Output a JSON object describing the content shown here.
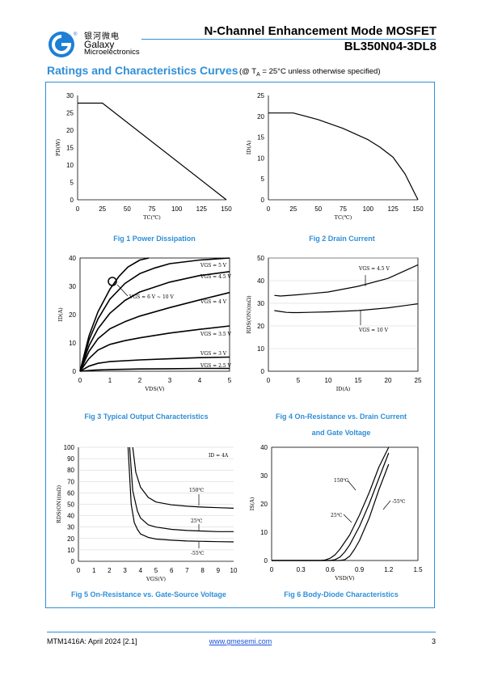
{
  "header": {
    "brand_cn": "银河微电",
    "brand_en": "Galaxy",
    "brand_sub": "Microelectronics",
    "title": "N-Channel Enhancement Mode MOSFET",
    "part_number": "BL350N04-3DL8"
  },
  "section": {
    "title": "Ratings and Characteristics Curves",
    "condition_prefix": "(@ T",
    "condition_sub": "A",
    "condition_suffix": " = 25°C unless otherwise specified)"
  },
  "colors": {
    "accent": "#2f8fd8",
    "logo": "#1d7fd6",
    "curve": "#000000"
  },
  "chart_data": [
    {
      "id": "fig1",
      "type": "line",
      "caption": "Fig 1    Power Dissipation",
      "xlabel": "TC(℃)",
      "ylabel": "PD(W)",
      "xticks": [
        0,
        25,
        50,
        75,
        100,
        125,
        150
      ],
      "yticks": [
        0,
        5,
        10,
        15,
        20,
        25,
        30
      ],
      "xlim": [
        0,
        150
      ],
      "ylim": [
        0,
        30
      ],
      "series": [
        {
          "x": [
            0,
            25,
            150
          ],
          "y": [
            27.8,
            27.8,
            0
          ]
        }
      ]
    },
    {
      "id": "fig2",
      "type": "line",
      "caption": "Fig 2    Drain Current",
      "xlabel": "TC(℃)",
      "ylabel": "ID(A)",
      "xticks": [
        0,
        25,
        50,
        75,
        100,
        125,
        150
      ],
      "yticks": [
        0,
        5,
        10,
        15,
        20,
        25
      ],
      "xlim": [
        0,
        150
      ],
      "ylim": [
        0,
        25
      ],
      "series": [
        {
          "x": [
            0,
            25,
            50,
            75,
            100,
            112,
            125,
            137,
            150
          ],
          "y": [
            20.8,
            20.8,
            19.2,
            17.1,
            14.4,
            12.6,
            10.2,
            6.2,
            0
          ]
        }
      ]
    },
    {
      "id": "fig3",
      "type": "line",
      "caption": "Fig 3    Typical Output Characteristics",
      "xlabel": "VDS(V)",
      "ylabel": "ID(A)",
      "xticks": [
        0,
        1,
        2,
        3,
        4,
        5
      ],
      "yticks": [
        0,
        10,
        20,
        30,
        40
      ],
      "xlim": [
        0,
        5
      ],
      "ylim": [
        0,
        40
      ],
      "series": [
        {
          "name": "VGS = 2.5 V",
          "x": [
            0,
            0.5,
            1,
            2,
            3,
            4,
            5
          ],
          "y": [
            0,
            0.4,
            0.6,
            0.8,
            0.9,
            1.0,
            1.0
          ]
        },
        {
          "name": "VGS = 3 V",
          "x": [
            0,
            0.3,
            0.6,
            1,
            2,
            3,
            4,
            5
          ],
          "y": [
            0,
            1.8,
            2.8,
            3.4,
            4.0,
            4.4,
            4.8,
            5.0
          ]
        },
        {
          "name": "VGS = 3.5 V",
          "x": [
            0,
            0.3,
            0.6,
            1,
            1.5,
            2,
            3,
            4,
            5
          ],
          "y": [
            0,
            4.5,
            7.5,
            9.5,
            10.8,
            11.8,
            13.5,
            14.8,
            16.0
          ]
        },
        {
          "name": "VGS = 4 V",
          "x": [
            0,
            0.3,
            0.6,
            1,
            1.5,
            2,
            3,
            4,
            5
          ],
          "y": [
            0,
            7.0,
            11.5,
            15.0,
            17.5,
            19.5,
            22.5,
            25.2,
            27.8
          ]
        },
        {
          "name": "VGS = 4.5 V",
          "x": [
            0,
            0.3,
            0.6,
            1,
            1.5,
            2,
            3,
            4,
            5
          ],
          "y": [
            0,
            9.0,
            15.0,
            20.5,
            25.0,
            28.0,
            31.5,
            33.8,
            35.2
          ]
        },
        {
          "name": "VGS = 5 V",
          "x": [
            0,
            0.3,
            0.6,
            1,
            1.5,
            2,
            2.5,
            3,
            4,
            5
          ],
          "y": [
            0,
            11.0,
            18.5,
            25.5,
            31.0,
            34.5,
            36.5,
            38.0,
            39.3,
            40.0
          ]
        },
        {
          "name": "VGS = 6 V ~ 10 V",
          "x": [
            0,
            0.3,
            0.6,
            1,
            1.3,
            1.6,
            2,
            2.3
          ],
          "y": [
            0,
            12.5,
            21.0,
            29.0,
            33.5,
            36.8,
            39.3,
            40.0
          ]
        }
      ],
      "annotations": [
        "VGS = 5 V",
        "VGS = 4.5 V",
        "VGS = 6 V ~ 10 V",
        "VGS = 4 V",
        "VGS = 3.5 V",
        "VGS = 3 V",
        "VGS = 2.5 V"
      ]
    },
    {
      "id": "fig4",
      "type": "line",
      "caption_line1": "Fig 4    On-Resistance vs. Drain Current",
      "caption_line2": "and Gate Voltage",
      "xlabel": "ID(A)",
      "ylabel": "RDS(ON)(mΩ)",
      "xticks": [
        0,
        5,
        10,
        15,
        20,
        25
      ],
      "yticks": [
        0,
        10,
        20,
        30,
        40,
        50
      ],
      "xlim": [
        0,
        25
      ],
      "ylim": [
        0,
        50
      ],
      "series": [
        {
          "name": "VGS = 4.5 V",
          "x": [
            1,
            2,
            3,
            5,
            10,
            15,
            20,
            25
          ],
          "y": [
            33.5,
            33.2,
            33.4,
            33.8,
            35.0,
            37.5,
            41.0,
            47.0
          ]
        },
        {
          "name": "VGS = 10 V",
          "x": [
            1,
            2,
            3,
            4,
            5,
            10,
            15,
            20,
            25
          ],
          "y": [
            26.8,
            26.4,
            26.0,
            25.9,
            25.9,
            26.2,
            26.8,
            28.0,
            29.8
          ]
        }
      ],
      "annotations": [
        "VGS = 4.5 V",
        "VGS = 10 V"
      ]
    },
    {
      "id": "fig5",
      "type": "line",
      "caption": "Fig 5    On-Resistance vs. Gate-Source Voltage",
      "xlabel": "VGS(V)",
      "ylabel": "RDS(ON)(mΩ)",
      "xticks": [
        0,
        1,
        2,
        3,
        4,
        5,
        6,
        7,
        8,
        9,
        10
      ],
      "yticks": [
        0,
        10,
        20,
        30,
        40,
        50,
        60,
        70,
        80,
        90,
        100
      ],
      "xlim": [
        0,
        10
      ],
      "ylim": [
        0,
        100
      ],
      "series": [
        {
          "name": "150℃",
          "x": [
            3.5,
            3.7,
            4,
            4.5,
            5,
            6,
            7,
            8,
            9,
            10
          ],
          "y": [
            100,
            78,
            65,
            56,
            52,
            49.5,
            48.3,
            47.5,
            47,
            46.5
          ]
        },
        {
          "name": "25℃",
          "x": [
            3.3,
            3.5,
            3.8,
            4,
            4.5,
            5,
            6,
            7,
            8,
            9,
            10
          ],
          "y": [
            100,
            62,
            44,
            38,
            32,
            30,
            28,
            27,
            26.5,
            26,
            26
          ]
        },
        {
          "name": "-55℃",
          "x": [
            3.2,
            3.4,
            3.6,
            3.8,
            4,
            4.5,
            5,
            6,
            7,
            8,
            9,
            10
          ],
          "y": [
            100,
            50,
            34,
            28,
            24,
            21,
            19.5,
            18.5,
            17.8,
            17.5,
            17.2,
            17
          ]
        }
      ],
      "annotations": [
        "ID = 4A",
        "150℃",
        "25℃",
        "-55℃"
      ]
    },
    {
      "id": "fig6",
      "type": "line",
      "caption": "Fig 6    Body-Diode Characteristics",
      "xlabel": "VSD(V)",
      "ylabel": "IS(A)",
      "xticks": [
        0,
        0.3,
        0.6,
        0.9,
        1.2,
        1.5
      ],
      "yticks": [
        0,
        10,
        20,
        30,
        40
      ],
      "xlim": [
        0,
        1.5
      ],
      "ylim": [
        0,
        40
      ],
      "series": [
        {
          "name": "150℃",
          "x": [
            0,
            0.5,
            0.55,
            0.6,
            0.65,
            0.7,
            0.8,
            0.9,
            1.0,
            1.1,
            1.2
          ],
          "y": [
            0,
            0,
            0.2,
            0.8,
            2,
            4,
            9,
            16,
            24,
            33,
            41
          ]
        },
        {
          "name": "25℃",
          "x": [
            0,
            0.6,
            0.65,
            0.7,
            0.75,
            0.8,
            0.9,
            1.0,
            1.1,
            1.2
          ],
          "y": [
            0,
            0,
            0.3,
            1.2,
            3,
            5.5,
            12,
            20,
            29,
            38
          ]
        },
        {
          "name": "-55℃",
          "x": [
            0,
            0.7,
            0.75,
            0.8,
            0.85,
            0.9,
            1.0,
            1.1,
            1.2
          ],
          "y": [
            0,
            0,
            0.3,
            1.5,
            4,
            7,
            15,
            25,
            34
          ]
        }
      ],
      "annotations": [
        "150℃",
        "25℃",
        "-55℃"
      ]
    }
  ],
  "footer": {
    "doc": "MTM1416A: April 2024 [2.1]",
    "url": "www.gmesemi.com",
    "page": "3"
  }
}
